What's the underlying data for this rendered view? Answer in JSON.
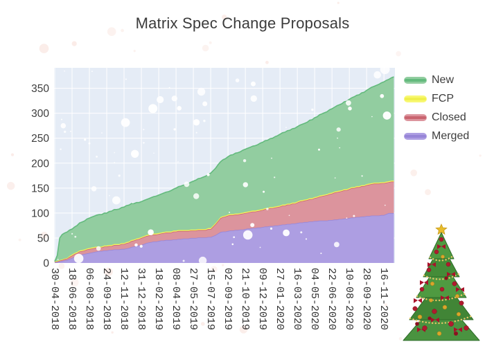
{
  "chart": {
    "title": "Matrix Spec Change Proposals"
  },
  "chart_data": {
    "type": "area",
    "stacked": true,
    "title": "Matrix Spec Change Proposals",
    "xlabel": "",
    "ylabel": "",
    "legend_position": "right",
    "grid": true,
    "ylim": [
      0,
      391
    ],
    "xlim_days": [
      -2,
      962
    ],
    "y_ticks": [
      0,
      50,
      100,
      150,
      200,
      250,
      300,
      350
    ],
    "x_tick_labels": [
      "30-04-2018",
      "18-06-2018",
      "06-08-2018",
      "24-09-2018",
      "12-11-2018",
      "31-12-2018",
      "18-02-2019",
      "08-04-2019",
      "27-05-2019",
      "15-07-2019",
      "02-09-2019",
      "21-10-2019",
      "09-12-2019",
      "27-01-2020",
      "16-03-2020",
      "04-05-2020",
      "22-06-2020",
      "10-08-2020",
      "28-09-2020",
      "16-11-2020"
    ],
    "x": [
      "30-04-2018",
      "07-05-2018",
      "14-05-2018",
      "21-05-2018",
      "04-06-2018",
      "18-06-2018",
      "02-07-2018",
      "16-07-2018",
      "06-08-2018",
      "20-08-2018",
      "03-09-2018",
      "24-09-2018",
      "08-10-2018",
      "22-10-2018",
      "12-11-2018",
      "26-11-2018",
      "10-12-2018",
      "31-12-2018",
      "14-01-2019",
      "28-01-2019",
      "18-02-2019",
      "18-03-2019",
      "08-04-2019",
      "06-05-2019",
      "27-05-2019",
      "24-06-2019",
      "15-07-2019",
      "29-07-2019",
      "12-08-2019",
      "02-09-2019",
      "30-09-2019",
      "21-10-2019",
      "18-11-2019",
      "09-12-2019",
      "06-01-2020",
      "27-01-2020",
      "24-02-2020",
      "16-03-2020",
      "13-04-2020",
      "04-05-2020",
      "01-06-2020",
      "22-06-2020",
      "20-07-2020",
      "10-08-2020",
      "07-09-2020",
      "28-09-2020",
      "26-10-2020",
      "16-11-2020",
      "30-11-2020",
      "14-12-2020"
    ],
    "series": [
      {
        "name": "Merged",
        "values": [
          1,
          2,
          3,
          4,
          6,
          10,
          14,
          17,
          20,
          22,
          24,
          25,
          26,
          27,
          28,
          30,
          33,
          36,
          40,
          42,
          44,
          46,
          47,
          49,
          50,
          51,
          52,
          56,
          62,
          64,
          66,
          68,
          70,
          72,
          74,
          76,
          78,
          80,
          82,
          84,
          85,
          86,
          88,
          90,
          92,
          94,
          95,
          96,
          100,
          100
        ]
      },
      {
        "name": "Closed",
        "values": [
          1,
          1,
          2,
          2,
          3,
          5,
          6,
          7,
          8,
          8,
          7,
          8,
          8,
          9,
          10,
          11,
          12,
          14,
          14,
          14,
          14,
          15,
          16,
          15,
          15,
          15,
          16,
          22,
          28,
          31,
          31,
          32,
          33,
          34,
          36,
          37,
          39,
          41,
          44,
          46,
          50,
          53,
          56,
          58,
          60,
          62,
          64,
          64,
          62,
          63
        ]
      },
      {
        "name": "FCP",
        "values": [
          1,
          1,
          1,
          1,
          1,
          2,
          2,
          2,
          2,
          2,
          2,
          2,
          2,
          2,
          2,
          2,
          2,
          2,
          2,
          2,
          2,
          2,
          2,
          2,
          2,
          2,
          2,
          2,
          2,
          2,
          2,
          2,
          2,
          2,
          2,
          2,
          2,
          2,
          2,
          2,
          2,
          2,
          2,
          2,
          2,
          2,
          2,
          2,
          2,
          2
        ]
      },
      {
        "name": "New",
        "values": [
          0,
          11,
          44,
          50,
          52,
          51,
          53,
          56,
          60,
          62,
          64,
          65,
          68,
          69,
          72,
          73,
          72,
          71,
          71,
          73,
          76,
          80,
          85,
          91,
          97,
          104,
          110,
          110,
          111,
          116,
          122,
          126,
          130,
          134,
          138,
          143,
          147,
          150,
          154,
          159,
          164,
          168,
          173,
          178,
          183,
          188,
          195,
          201,
          204,
          208
        ]
      }
    ],
    "legend_order": [
      "New",
      "FCP",
      "Closed",
      "Merged"
    ],
    "colors": {
      "plot_background": "#e5ecf6",
      "grid": "#ffffff",
      "text": "#3d3d3d",
      "series": {
        "New": {
          "line": "#63ba7d",
          "fill": "#92cda0"
        },
        "FCP": {
          "line": "#efef4d",
          "fill": "#f8f872"
        },
        "Closed": {
          "line": "#c9646f",
          "fill": "#dc949d"
        },
        "Merged": {
          "line": "#9785d7",
          "fill": "#ad9ee2"
        }
      }
    }
  },
  "decorations": {
    "snow_inside_color": "#ffffff",
    "snow_outside_color": "#f7dcd4"
  }
}
